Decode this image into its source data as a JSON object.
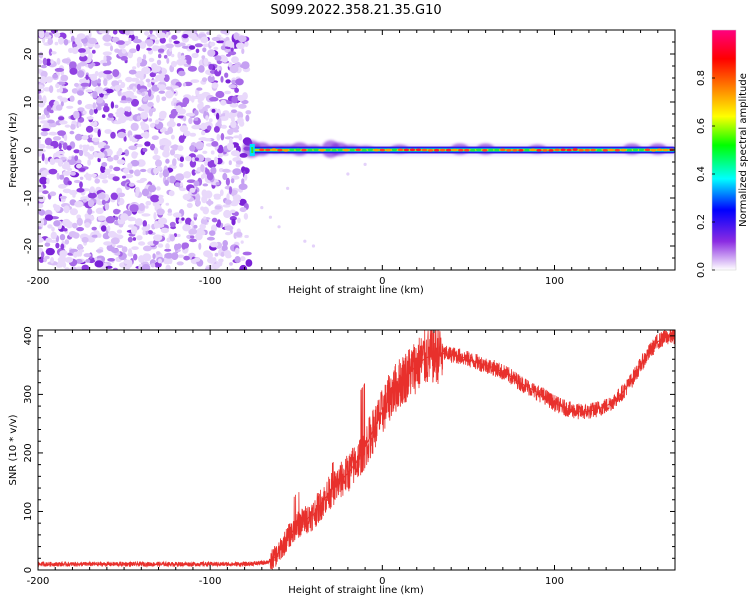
{
  "title": "S099.2022.358.21.35.G10",
  "colors": {
    "snr_line": "#e8302c",
    "frame": "#000000"
  },
  "chart_data": [
    {
      "type": "heatmap",
      "xlabel": "Height of straight line (km)",
      "ylabel": "Frequency (Hz)",
      "xlim": [
        -200,
        170
      ],
      "ylim": [
        -25,
        25
      ],
      "xticks": [
        -200,
        -100,
        0,
        100
      ],
      "yticks": [
        -20,
        -10,
        0,
        10,
        20
      ],
      "xtick_labels": [
        "-200",
        "-100",
        "0",
        "100"
      ],
      "ytick_labels": [
        "-20",
        "-10",
        "0",
        "10",
        "20"
      ],
      "noise_region_x": [
        -200,
        -77
      ],
      "signal_region_x": [
        -77,
        170
      ],
      "signal_frequency": 0,
      "colorbar": {
        "label": "Normalized spectral amplitude",
        "range": [
          0,
          1
        ],
        "ticks": [
          "0.0",
          "0.2",
          "0.4",
          "0.6",
          "0.8"
        ],
        "tick_values": [
          0,
          0.2,
          0.4,
          0.6,
          0.8
        ],
        "colormap": [
          "#ffffff",
          "#8a2be2",
          "#0000ff",
          "#00ffff",
          "#00ff00",
          "#ffff00",
          "#ff8000",
          "#ff0000",
          "#ff0080"
        ]
      }
    },
    {
      "type": "line",
      "xlabel": "Height of straight line (km)",
      "ylabel": "SNR (10 * v/v)",
      "xlim": [
        -200,
        170
      ],
      "ylim": [
        0,
        410
      ],
      "xticks": [
        -200,
        -100,
        0,
        100
      ],
      "yticks": [
        0,
        100,
        200,
        300,
        400
      ],
      "xtick_labels": [
        "-200",
        "-100",
        "0",
        "100"
      ],
      "ytick_labels": [
        "0",
        "100",
        "200",
        "300",
        "400"
      ],
      "series": [
        {
          "x": [
            -200,
            -180,
            -160,
            -140,
            -120,
            -100,
            -80,
            -70,
            -65,
            -60,
            -55,
            -50,
            -45,
            -40,
            -35,
            -30,
            -25,
            -20,
            -15,
            -10,
            -5,
            0,
            5,
            10,
            15,
            20,
            25,
            30,
            35,
            40,
            45,
            50,
            55,
            60,
            65,
            70,
            75,
            80,
            85,
            90,
            95,
            100,
            105,
            110,
            115,
            120,
            125,
            130,
            135,
            140,
            145,
            150,
            155,
            160,
            165,
            170
          ],
          "y": [
            10,
            10,
            10,
            10,
            10,
            10,
            10,
            12,
            15,
            30,
            55,
            75,
            85,
            95,
            115,
            135,
            150,
            165,
            185,
            210,
            240,
            270,
            300,
            320,
            335,
            350,
            362,
            368,
            370,
            368,
            365,
            360,
            355,
            350,
            345,
            338,
            330,
            320,
            312,
            303,
            295,
            285,
            278,
            273,
            270,
            271,
            275,
            280,
            290,
            305,
            325,
            350,
            372,
            390,
            398,
            400
          ]
        }
      ]
    }
  ]
}
